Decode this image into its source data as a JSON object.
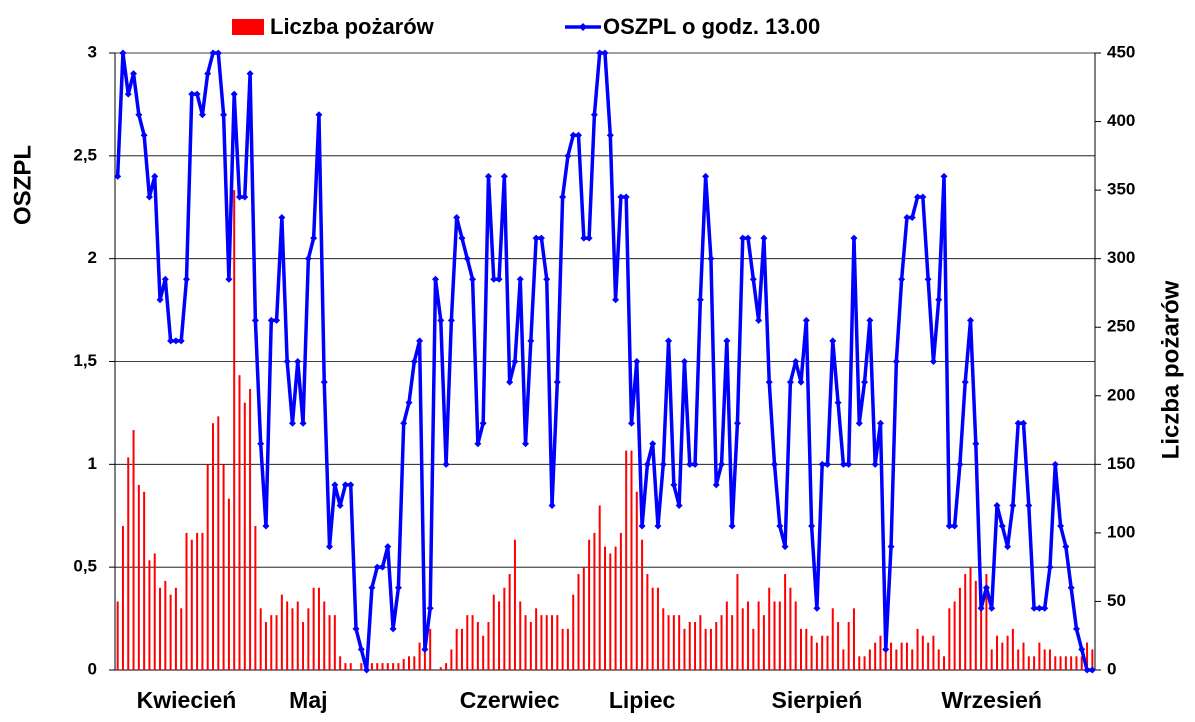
{
  "chart_data": {
    "type": "combo",
    "ylabel": "OSZPL",
    "y2label": "Liczba pożarów",
    "ylim": [
      0,
      3
    ],
    "yticks": [
      0,
      {
        "value": 0.5,
        "label": "0,5"
      },
      1,
      {
        "value": 1.5,
        "label": "1,5"
      },
      2,
      {
        "value": 2.5,
        "label": "2,5"
      },
      3
    ],
    "y2lim": [
      0,
      450
    ],
    "y2ticks": [
      0,
      50,
      100,
      150,
      200,
      250,
      300,
      350,
      400,
      450
    ],
    "grid": true,
    "categories": [
      null,
      null,
      null,
      null,
      null,
      null,
      null,
      null,
      null,
      null,
      null,
      null,
      null,
      "Kwiecień",
      null,
      null,
      null,
      null,
      null,
      null,
      null,
      null,
      null,
      null,
      null,
      null,
      null,
      null,
      null,
      null,
      null,
      null,
      null,
      null,
      null,
      null,
      "Maj",
      null,
      null,
      null,
      null,
      null,
      null,
      null,
      null,
      null,
      null,
      null,
      null,
      null,
      null,
      null,
      null,
      null,
      null,
      null,
      null,
      null,
      null,
      null,
      null,
      null,
      null,
      null,
      null,
      null,
      null,
      null,
      null,
      null,
      null,
      null,
      null,
      null,
      "Czerwiec",
      null,
      null,
      null,
      null,
      null,
      null,
      null,
      null,
      null,
      null,
      null,
      null,
      null,
      null,
      null,
      null,
      null,
      null,
      null,
      null,
      null,
      null,
      null,
      null,
      "Lipiec",
      null,
      null,
      null,
      null,
      null,
      null,
      null,
      null,
      null,
      null,
      null,
      null,
      null,
      null,
      null,
      null,
      null,
      null,
      null,
      null,
      null,
      null,
      null,
      null,
      null,
      null,
      null,
      null,
      null,
      null,
      null,
      null,
      "Sierpień",
      null,
      null,
      null,
      null,
      null,
      null,
      null,
      null,
      null,
      null,
      null,
      null,
      null,
      null,
      null,
      null,
      null,
      null,
      null,
      null,
      null,
      null,
      null,
      null,
      null,
      null,
      null,
      null,
      null,
      null,
      null,
      null,
      "Wrzesień",
      null,
      null,
      null,
      null,
      null,
      null,
      null,
      null,
      null,
      null,
      null,
      null,
      null,
      null,
      null,
      null,
      null,
      null,
      null
    ],
    "series": [
      {
        "name": "Liczba pożarów",
        "type": "bar",
        "axis": "y2",
        "color": "#ff0000",
        "values": [
          50,
          105,
          155,
          175,
          135,
          130,
          80,
          85,
          60,
          65,
          55,
          60,
          45,
          100,
          95,
          100,
          100,
          150,
          180,
          185,
          150,
          125,
          350,
          215,
          195,
          205,
          105,
          45,
          35,
          40,
          40,
          55,
          50,
          45,
          50,
          35,
          45,
          60,
          60,
          50,
          40,
          40,
          10,
          5,
          5,
          0,
          5,
          5,
          5,
          5,
          5,
          5,
          5,
          5,
          8,
          10,
          10,
          20,
          20,
          30,
          0,
          2,
          5,
          15,
          30,
          30,
          40,
          40,
          35,
          25,
          35,
          55,
          50,
          60,
          70,
          95,
          50,
          40,
          35,
          45,
          40,
          40,
          40,
          40,
          30,
          30,
          55,
          70,
          75,
          95,
          100,
          120,
          90,
          85,
          90,
          100,
          160,
          160,
          130,
          95,
          70,
          60,
          60,
          45,
          40,
          40,
          40,
          30,
          35,
          35,
          40,
          30,
          30,
          35,
          40,
          50,
          40,
          70,
          45,
          50,
          30,
          50,
          40,
          60,
          50,
          50,
          70,
          60,
          50,
          30,
          30,
          25,
          20,
          25,
          25,
          45,
          35,
          15,
          35,
          45,
          10,
          10,
          15,
          20,
          25,
          15,
          20,
          15,
          20,
          20,
          15,
          30,
          25,
          20,
          25,
          15,
          10,
          45,
          50,
          60,
          70,
          75,
          65,
          55,
          70,
          15,
          25,
          20,
          25,
          30,
          15,
          20,
          10,
          10,
          20,
          15,
          15,
          10,
          10,
          10,
          10,
          10,
          10,
          20,
          15
        ]
      },
      {
        "name": "OSZPL o godz. 13.00",
        "type": "line",
        "axis": "y",
        "color": "#0000ff",
        "values": [
          2.4,
          3.0,
          2.8,
          2.9,
          2.7,
          2.6,
          2.3,
          2.4,
          1.8,
          1.9,
          1.6,
          1.6,
          1.6,
          1.9,
          2.8,
          2.8,
          2.7,
          2.9,
          3.0,
          3.0,
          2.7,
          1.9,
          2.8,
          2.3,
          2.3,
          2.9,
          1.7,
          1.1,
          0.7,
          1.7,
          1.7,
          2.2,
          1.5,
          1.2,
          1.5,
          1.2,
          2.0,
          2.1,
          2.7,
          1.4,
          0.6,
          0.9,
          0.8,
          0.9,
          0.9,
          0.2,
          0.1,
          0.0,
          0.4,
          0.5,
          0.5,
          0.6,
          0.2,
          0.4,
          1.2,
          1.3,
          1.5,
          1.6,
          0.1,
          0.3,
          1.9,
          1.7,
          1.0,
          1.7,
          2.2,
          2.1,
          2.0,
          1.9,
          1.1,
          1.2,
          2.4,
          1.9,
          1.9,
          2.4,
          1.4,
          1.5,
          1.9,
          1.1,
          1.6,
          2.1,
          2.1,
          1.9,
          0.8,
          1.4,
          2.3,
          2.5,
          2.6,
          2.6,
          2.1,
          2.1,
          2.7,
          3.0,
          3.0,
          2.6,
          1.8,
          2.3,
          2.3,
          1.2,
          1.5,
          0.7,
          1.0,
          1.1,
          0.7,
          1.0,
          1.6,
          0.9,
          0.8,
          1.5,
          1.0,
          1.0,
          1.8,
          2.4,
          2.0,
          0.9,
          1.0,
          1.6,
          0.7,
          1.2,
          2.1,
          2.1,
          1.9,
          1.7,
          2.1,
          1.4,
          1.0,
          0.7,
          0.6,
          1.4,
          1.5,
          1.4,
          1.7,
          0.7,
          0.3,
          1.0,
          1.0,
          1.6,
          1.3,
          1.0,
          1.0,
          2.1,
          1.2,
          1.4,
          1.7,
          1.0,
          1.2,
          0.1,
          0.6,
          1.5,
          1.9,
          2.2,
          2.2,
          2.3,
          2.3,
          1.9,
          1.5,
          1.8,
          2.4,
          0.7,
          0.7,
          1.0,
          1.4,
          1.7,
          1.1,
          0.3,
          0.4,
          0.3,
          0.8,
          0.7,
          0.6,
          0.8,
          1.2,
          1.2,
          0.8,
          0.3,
          0.3,
          0.3,
          0.5,
          1.0,
          0.7,
          0.6,
          0.4,
          0.2,
          0.1,
          0.0,
          0.0
        ]
      }
    ]
  }
}
